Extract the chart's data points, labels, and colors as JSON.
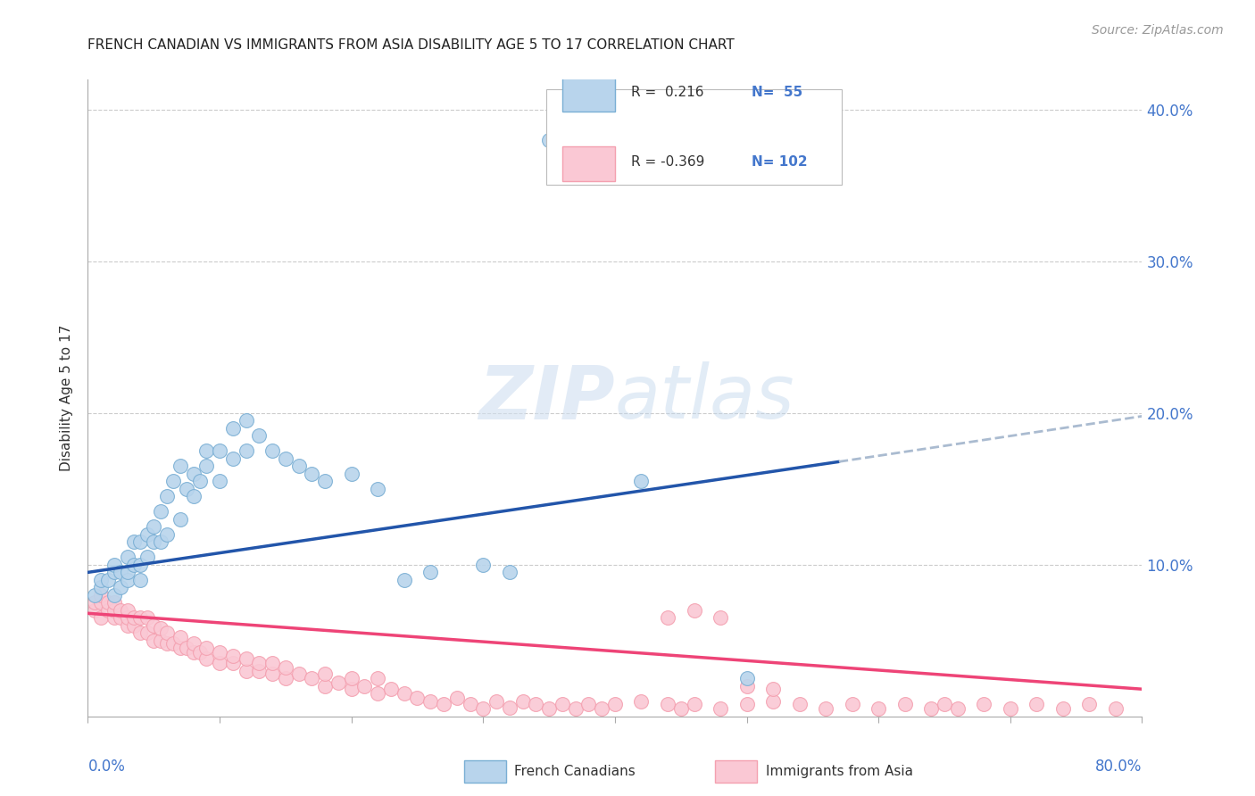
{
  "title": "FRENCH CANADIAN VS IMMIGRANTS FROM ASIA DISABILITY AGE 5 TO 17 CORRELATION CHART",
  "source": "Source: ZipAtlas.com",
  "ylabel": "Disability Age 5 to 17",
  "ytick_values": [
    0.0,
    0.1,
    0.2,
    0.3,
    0.4
  ],
  "xlim": [
    0.0,
    0.8
  ],
  "ylim": [
    0.0,
    0.42
  ],
  "watermark": "ZIPatlas",
  "blue_color": "#7AAFD4",
  "pink_color": "#F4A0B0",
  "blue_fill": "#B8D4EC",
  "pink_fill": "#FAC8D4",
  "blue_line_color": "#2255AA",
  "pink_line_color": "#EE4477",
  "dash_line_color": "#AABBD0",
  "blue_line": {
    "x0": 0.0,
    "y0": 0.095,
    "x1": 0.57,
    "y1": 0.168,
    "xd": 0.8,
    "yd": 0.198
  },
  "pink_line": {
    "x0": 0.0,
    "y0": 0.068,
    "x1": 0.8,
    "y1": 0.018
  },
  "blue_scatter_x": [
    0.005,
    0.01,
    0.01,
    0.015,
    0.02,
    0.02,
    0.02,
    0.025,
    0.025,
    0.03,
    0.03,
    0.03,
    0.035,
    0.035,
    0.04,
    0.04,
    0.04,
    0.045,
    0.045,
    0.05,
    0.05,
    0.055,
    0.055,
    0.06,
    0.06,
    0.065,
    0.07,
    0.07,
    0.075,
    0.08,
    0.08,
    0.085,
    0.09,
    0.09,
    0.1,
    0.1,
    0.11,
    0.11,
    0.12,
    0.12,
    0.13,
    0.14,
    0.15,
    0.16,
    0.17,
    0.18,
    0.2,
    0.22,
    0.24,
    0.26,
    0.3,
    0.32,
    0.35,
    0.42,
    0.5
  ],
  "blue_scatter_y": [
    0.08,
    0.085,
    0.09,
    0.09,
    0.08,
    0.095,
    0.1,
    0.085,
    0.095,
    0.09,
    0.095,
    0.105,
    0.1,
    0.115,
    0.09,
    0.1,
    0.115,
    0.105,
    0.12,
    0.115,
    0.125,
    0.115,
    0.135,
    0.12,
    0.145,
    0.155,
    0.13,
    0.165,
    0.15,
    0.145,
    0.16,
    0.155,
    0.165,
    0.175,
    0.155,
    0.175,
    0.17,
    0.19,
    0.175,
    0.195,
    0.185,
    0.175,
    0.17,
    0.165,
    0.16,
    0.155,
    0.16,
    0.15,
    0.09,
    0.095,
    0.1,
    0.095,
    0.38,
    0.155,
    0.025
  ],
  "pink_scatter_x": [
    0.005,
    0.005,
    0.01,
    0.01,
    0.01,
    0.015,
    0.015,
    0.02,
    0.02,
    0.02,
    0.025,
    0.025,
    0.03,
    0.03,
    0.03,
    0.035,
    0.035,
    0.04,
    0.04,
    0.045,
    0.045,
    0.05,
    0.05,
    0.055,
    0.055,
    0.06,
    0.06,
    0.065,
    0.07,
    0.07,
    0.075,
    0.08,
    0.08,
    0.085,
    0.09,
    0.09,
    0.1,
    0.1,
    0.11,
    0.11,
    0.12,
    0.12,
    0.13,
    0.13,
    0.14,
    0.14,
    0.15,
    0.15,
    0.16,
    0.17,
    0.18,
    0.18,
    0.19,
    0.2,
    0.2,
    0.21,
    0.22,
    0.22,
    0.23,
    0.24,
    0.25,
    0.26,
    0.27,
    0.28,
    0.29,
    0.3,
    0.31,
    0.32,
    0.33,
    0.34,
    0.35,
    0.36,
    0.37,
    0.38,
    0.39,
    0.4,
    0.42,
    0.44,
    0.45,
    0.46,
    0.48,
    0.5,
    0.52,
    0.54,
    0.56,
    0.58,
    0.6,
    0.62,
    0.64,
    0.65,
    0.66,
    0.68,
    0.7,
    0.72,
    0.74,
    0.76,
    0.78,
    0.44,
    0.46,
    0.48,
    0.5,
    0.52
  ],
  "pink_scatter_y": [
    0.07,
    0.075,
    0.065,
    0.075,
    0.08,
    0.07,
    0.075,
    0.065,
    0.07,
    0.075,
    0.065,
    0.07,
    0.06,
    0.065,
    0.07,
    0.06,
    0.065,
    0.055,
    0.065,
    0.055,
    0.065,
    0.05,
    0.06,
    0.05,
    0.058,
    0.048,
    0.055,
    0.048,
    0.045,
    0.052,
    0.045,
    0.042,
    0.048,
    0.042,
    0.038,
    0.045,
    0.035,
    0.042,
    0.035,
    0.04,
    0.03,
    0.038,
    0.03,
    0.035,
    0.028,
    0.035,
    0.025,
    0.032,
    0.028,
    0.025,
    0.02,
    0.028,
    0.022,
    0.018,
    0.025,
    0.02,
    0.015,
    0.025,
    0.018,
    0.015,
    0.012,
    0.01,
    0.008,
    0.012,
    0.008,
    0.005,
    0.01,
    0.006,
    0.01,
    0.008,
    0.005,
    0.008,
    0.005,
    0.008,
    0.005,
    0.008,
    0.01,
    0.008,
    0.005,
    0.008,
    0.005,
    0.008,
    0.01,
    0.008,
    0.005,
    0.008,
    0.005,
    0.008,
    0.005,
    0.008,
    0.005,
    0.008,
    0.005,
    0.008,
    0.005,
    0.008,
    0.005,
    0.065,
    0.07,
    0.065,
    0.02,
    0.018
  ]
}
